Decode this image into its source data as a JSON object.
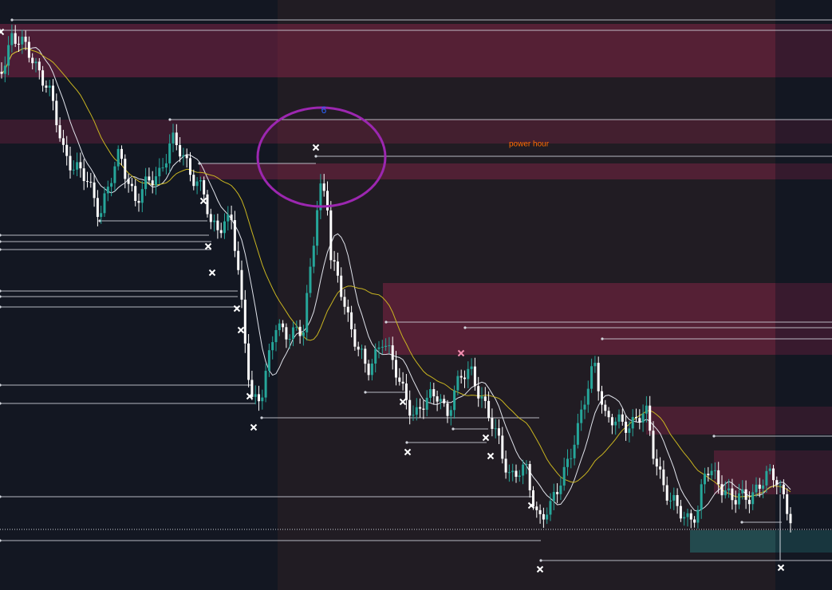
{
  "annotations": {
    "session_label": "power hour",
    "drawing_label": "6"
  }
}
